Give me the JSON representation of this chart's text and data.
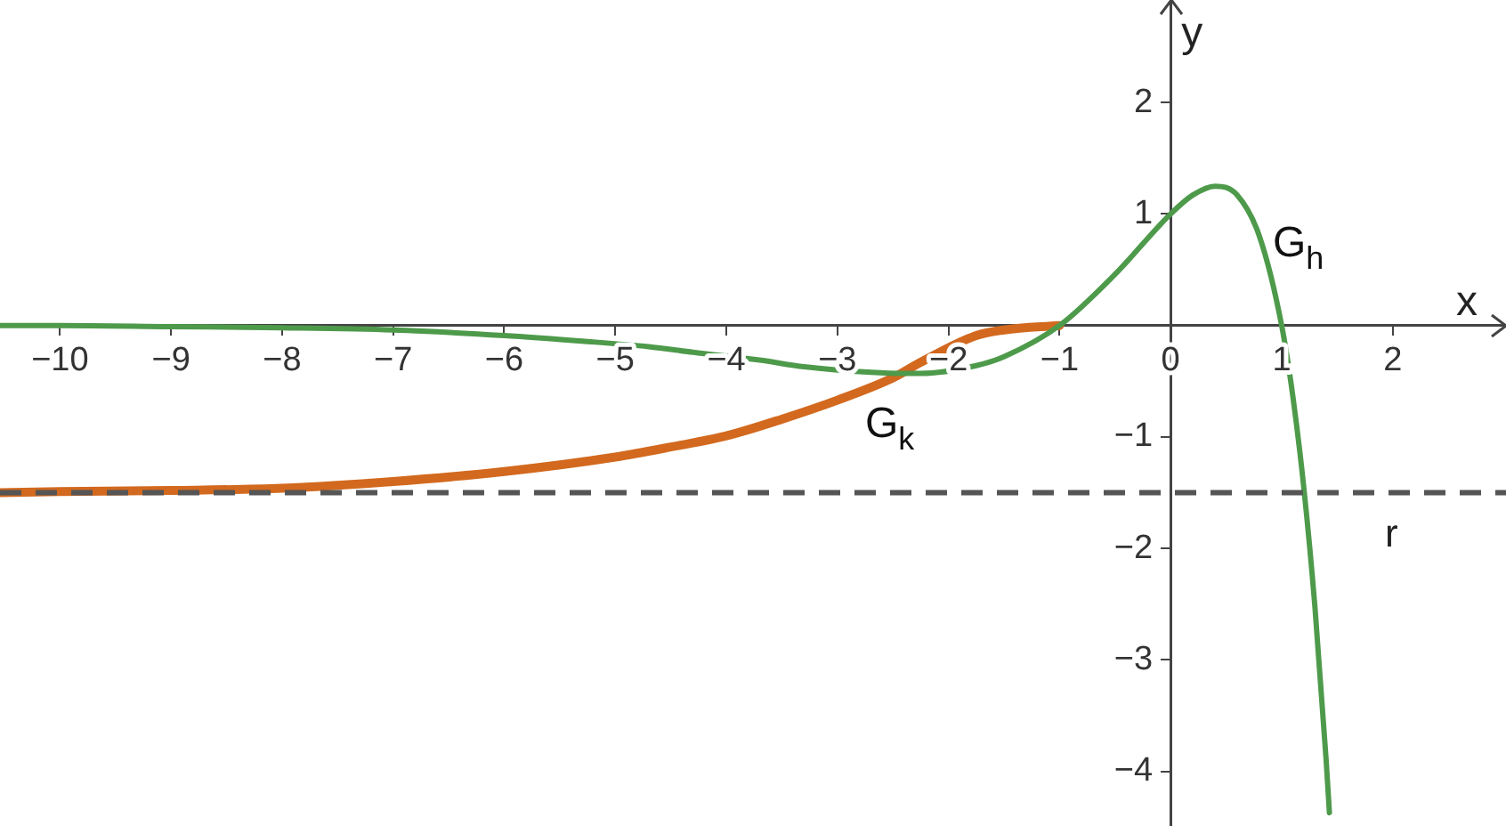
{
  "chart_data": {
    "type": "line",
    "xlabel": "x",
    "ylabel": "y",
    "xlim": [
      -10.54,
      3.02
    ],
    "ylim": [
      -4.49,
      2.92
    ],
    "xticks": [
      {
        "value": -10,
        "label": "−10"
      },
      {
        "value": -9,
        "label": "−9"
      },
      {
        "value": -8,
        "label": "−8"
      },
      {
        "value": -7,
        "label": "−7"
      },
      {
        "value": -6,
        "label": "−6"
      },
      {
        "value": -5,
        "label": "−5"
      },
      {
        "value": -4,
        "label": "−4"
      },
      {
        "value": -3,
        "label": "−3"
      },
      {
        "value": -2,
        "label": "−2"
      },
      {
        "value": -1,
        "label": "−1"
      },
      0,
      1,
      2
    ],
    "yticks": [
      {
        "value": -4,
        "label": "−4"
      },
      {
        "value": -3,
        "label": "−3"
      },
      {
        "value": -2,
        "label": "−2"
      },
      {
        "value": -1,
        "label": "−1"
      },
      1,
      2
    ],
    "marker": "none",
    "line_style": "solid",
    "series": [
      {
        "name": "G$_{h}$",
        "color": "#4e9a4b",
        "x": [
          -10.54,
          -10,
          -9,
          -8,
          -7,
          -6,
          -5.3,
          -4.7,
          -4.3,
          -3.7,
          -3.3,
          -2.7,
          -2.4,
          -2.25,
          -1.75,
          -1.5,
          -1,
          -0.5,
          0,
          0.2,
          0.4,
          0.6,
          0.8,
          1,
          1.1,
          1.2,
          1.3,
          1.4,
          1.43
        ],
        "values": [
          0,
          0,
          -0.01,
          -0.02,
          -0.04,
          -0.09,
          -0.14,
          -0.19,
          -0.24,
          -0.31,
          -0.37,
          -0.42,
          -0.43,
          -0.43,
          -0.36,
          -0.28,
          0,
          0.46,
          1,
          1.17,
          1.25,
          1.17,
          0.8,
          0,
          -0.63,
          -1.46,
          -2.53,
          -3.89,
          -4.37
        ]
      },
      {
        "name": "G$_{k}$",
        "color": "#d2691e",
        "x": [
          -10.54,
          -10,
          -9,
          -8,
          -7,
          -6,
          -5,
          -4.5,
          -4,
          -3.5,
          -3,
          -2.5,
          -2.25,
          -1.75,
          -1.5,
          -1
        ],
        "values": [
          -1.5,
          -1.49,
          -1.48,
          -1.46,
          -1.4,
          -1.31,
          -1.18,
          -1.09,
          -0.99,
          -0.84,
          -0.67,
          -0.47,
          -0.33,
          -0.09,
          -0.04,
          0
        ]
      }
    ],
    "ref_lines": [
      {
        "axis": "y",
        "value": -1.5,
        "label": "r",
        "color": "#555555",
        "line_style": "dashed"
      }
    ]
  }
}
